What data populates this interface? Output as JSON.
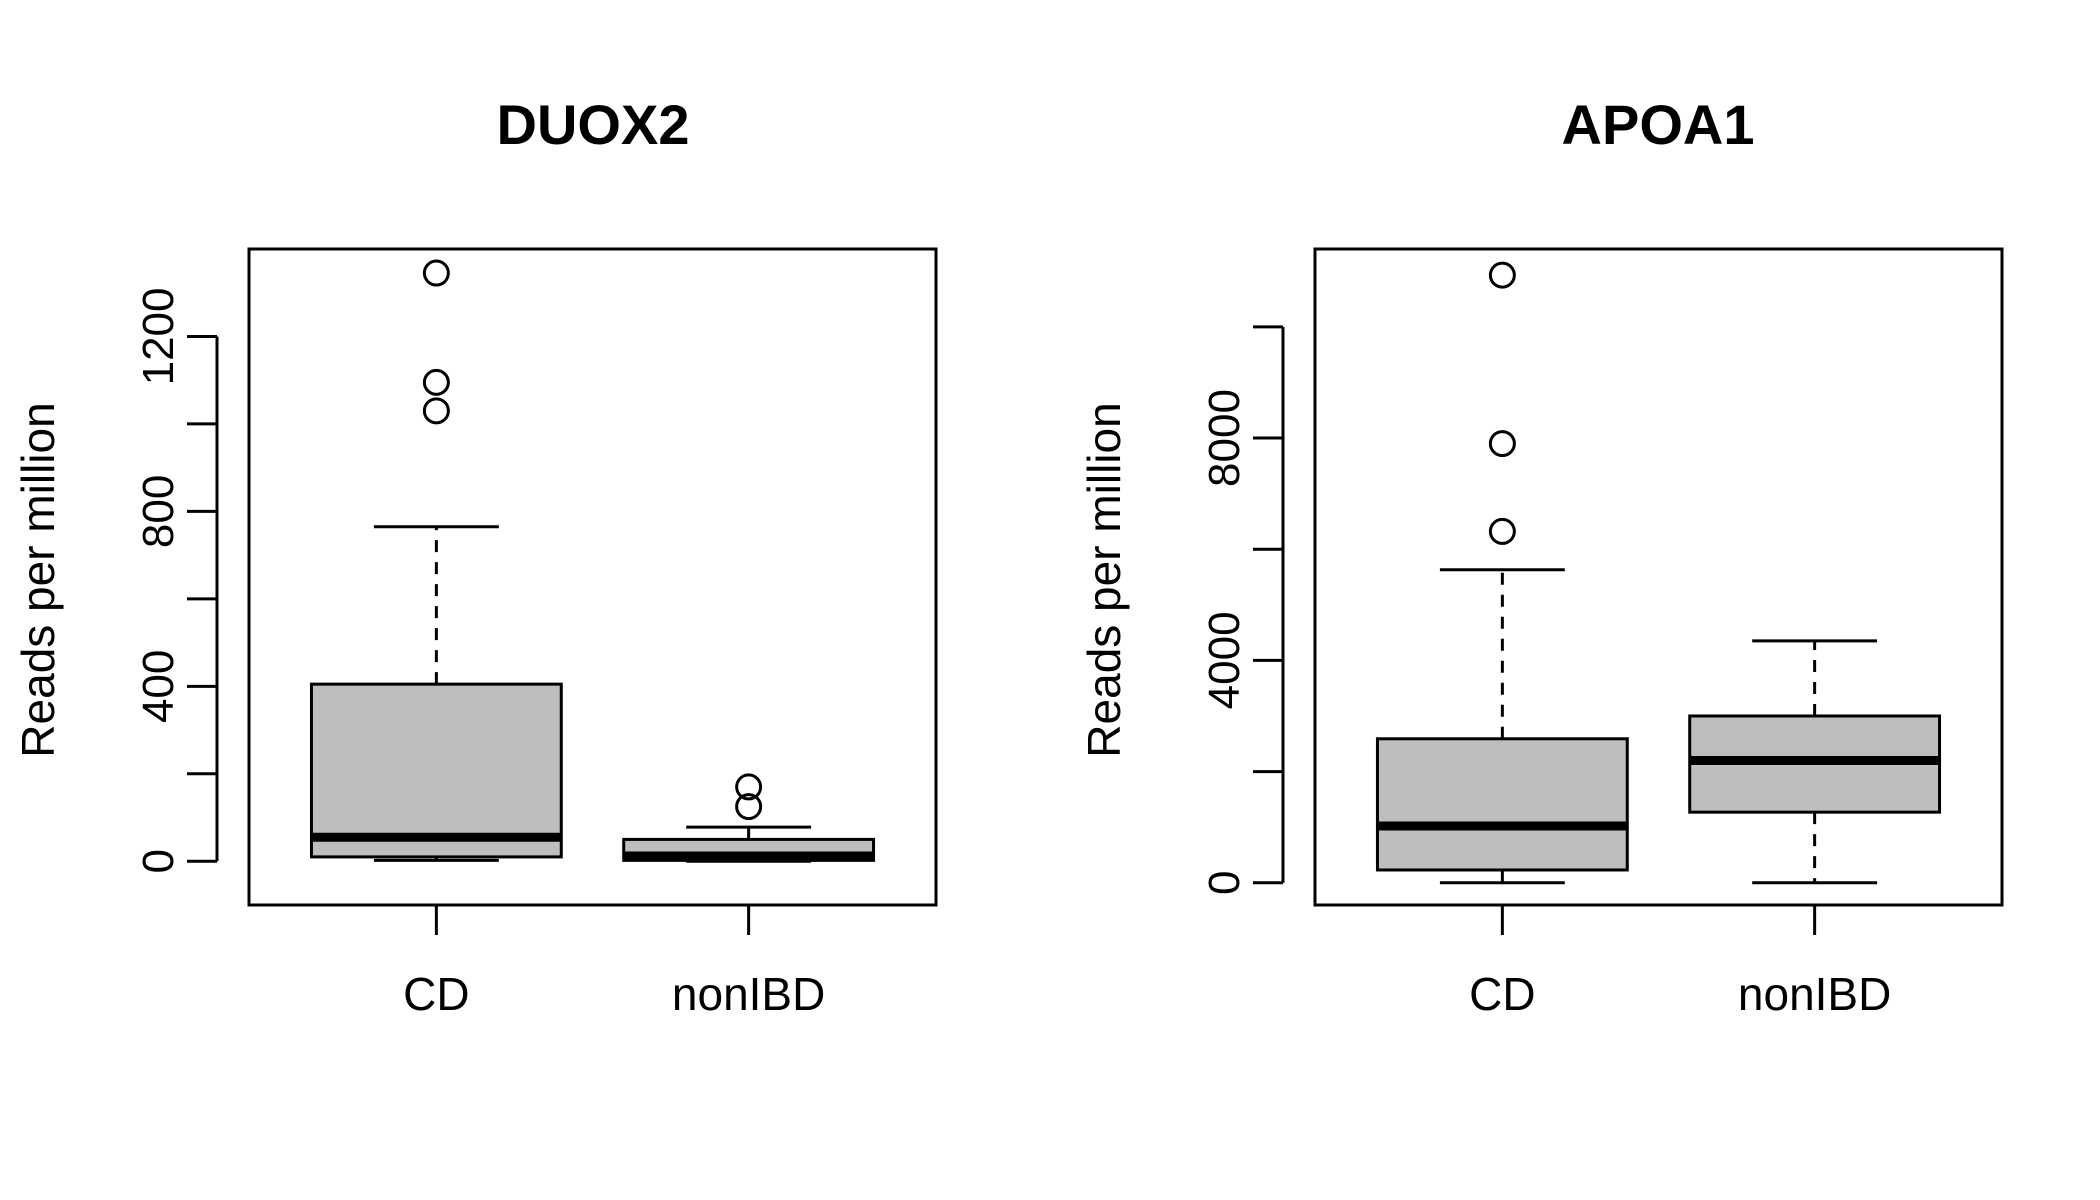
{
  "chart_data": [
    {
      "type": "boxplot",
      "title": "DUOX2",
      "xlabel": "",
      "ylabel": "Reads per million",
      "ylim": [
        -100,
        1400
      ],
      "yticks": [
        0,
        200,
        400,
        600,
        800,
        1000,
        1200
      ],
      "ytick_labels": [
        "0",
        "",
        "400",
        "",
        "800",
        "",
        "1200"
      ],
      "categories": [
        "CD",
        "nonIBD"
      ],
      "colors": {
        "box_fill": "#bebebe",
        "stroke": "#000000"
      },
      "boxes": [
        {
          "category": "CD",
          "whisker_low": 2,
          "q1": 10,
          "median": 55,
          "q3": 405,
          "whisker_high": 765,
          "outliers": [
            1030,
            1095,
            1345
          ]
        },
        {
          "category": "nonIBD",
          "whisker_low": 0,
          "q1": 2,
          "median": 12,
          "q3": 50,
          "whisker_high": 78,
          "outliers": [
            125,
            170
          ]
        }
      ]
    },
    {
      "type": "boxplot",
      "title": "APOA1",
      "xlabel": "",
      "ylabel": "Reads per million",
      "ylim": [
        -400,
        11400
      ],
      "yticks": [
        0,
        2000,
        4000,
        6000,
        8000,
        10000
      ],
      "ytick_labels": [
        "0",
        "",
        "4000",
        "",
        "8000",
        ""
      ],
      "categories": [
        "CD",
        "nonIBD"
      ],
      "colors": {
        "box_fill": "#bebebe",
        "stroke": "#000000"
      },
      "boxes": [
        {
          "category": "CD",
          "whisker_low": 0,
          "q1": 230,
          "median": 1020,
          "q3": 2590,
          "whisker_high": 5630,
          "outliers": [
            6320,
            7900,
            10930
          ]
        },
        {
          "category": "nonIBD",
          "whisker_low": 0,
          "q1": 1270,
          "median": 2200,
          "q3": 3000,
          "whisker_high": 4350,
          "outliers": []
        }
      ]
    }
  ]
}
